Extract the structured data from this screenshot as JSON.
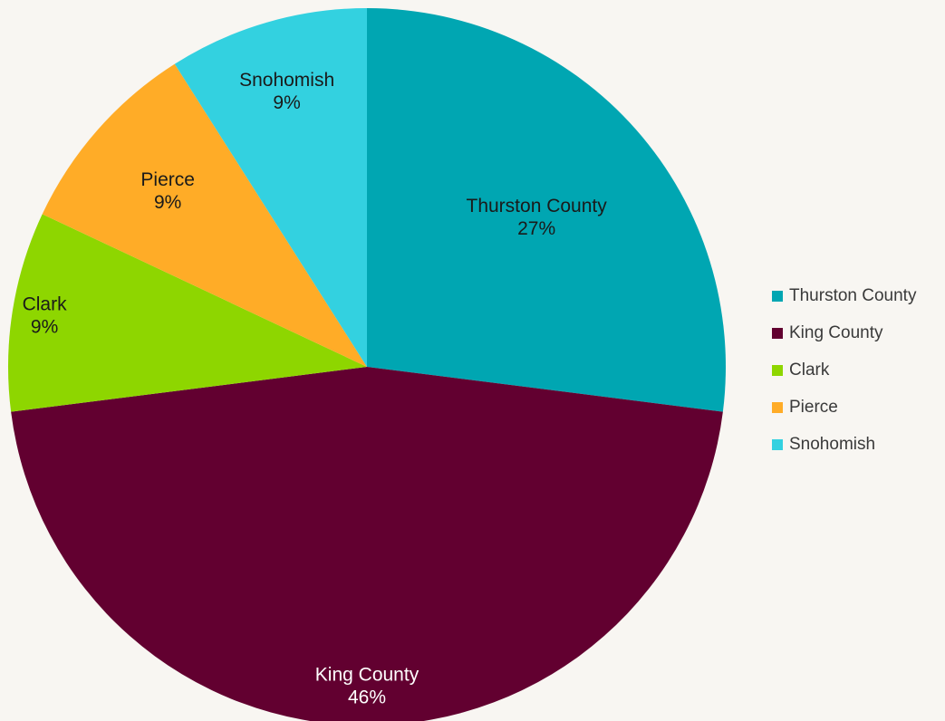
{
  "chart_data": {
    "type": "pie",
    "title": "",
    "legend": "right",
    "slices": [
      {
        "label": "Thurston County",
        "value": 27,
        "display": "27%",
        "color": "#00a6b2",
        "label_color": "#1a1a1a"
      },
      {
        "label": "King County",
        "value": 46,
        "display": "46%",
        "color": "#620030",
        "label_color": "#ffffff"
      },
      {
        "label": "Clark",
        "value": 9,
        "display": "9%",
        "color": "#8ed600",
        "label_color": "#1a1a1a"
      },
      {
        "label": "Pierce",
        "value": 9,
        "display": "9%",
        "color": "#ffac27",
        "label_color": "#1a1a1a"
      },
      {
        "label": "Snohomish",
        "value": 9,
        "display": "9%",
        "color": "#33d1e0",
        "label_color": "#1a1a1a"
      }
    ]
  }
}
